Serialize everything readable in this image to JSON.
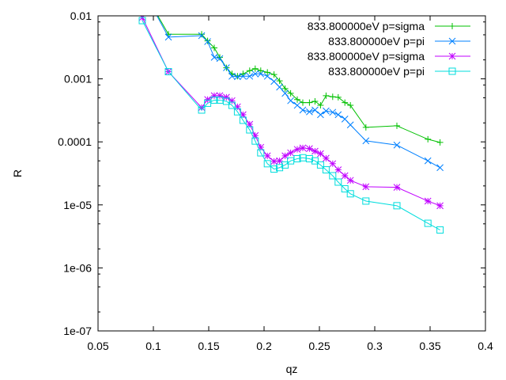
{
  "chart_data": {
    "type": "line",
    "title": "",
    "xlabel": "qz",
    "ylabel": "R",
    "xlim": [
      0.05,
      0.4
    ],
    "ylim": [
      1e-07,
      0.01
    ],
    "yscale": "log",
    "grid": false,
    "legend_position": "top-right",
    "x_ticks": [
      "0.05",
      "0.1",
      "0.15",
      "0.2",
      "0.25",
      "0.3",
      "0.35",
      "0.4"
    ],
    "y_ticks": [
      "1e-07",
      "1e-06",
      "1e-05",
      "0.0001",
      "0.001",
      "0.01"
    ],
    "x": [
      0.09,
      0.1136,
      0.1436,
      0.149,
      0.155,
      0.16,
      0.166,
      0.171,
      0.176,
      0.181,
      0.187,
      0.192,
      0.197,
      0.203,
      0.209,
      0.214,
      0.219,
      0.224,
      0.23,
      0.235,
      0.241,
      0.246,
      0.251,
      0.256,
      0.262,
      0.267,
      0.273,
      0.278,
      0.292,
      0.32,
      0.348,
      0.359
    ],
    "series": [
      {
        "name": "833.800000eV p=sigma",
        "color": "#00c000",
        "marker": "plus",
        "values": [
          0.027,
          0.0051,
          0.0051,
          0.004,
          0.0031,
          0.0022,
          0.0015,
          0.0012,
          0.0011,
          0.0012,
          0.00135,
          0.00145,
          0.00135,
          0.00127,
          0.00117,
          0.00093,
          0.0007,
          0.00059,
          0.00047,
          0.00042,
          0.00042,
          0.00044,
          0.00038,
          0.00054,
          0.00052,
          0.00051,
          0.00042,
          0.00038,
          0.00017,
          0.00018,
          0.00011,
          9.8e-05
        ]
      },
      {
        "name": "833.800000eV p=pi",
        "color": "#0080ff",
        "marker": "cross",
        "values": [
          0.027,
          0.0046,
          0.00485,
          0.0039,
          0.0022,
          0.0021,
          0.0015,
          0.0011,
          0.00108,
          0.0011,
          0.0011,
          0.0012,
          0.0012,
          0.0011,
          0.00091,
          0.00074,
          0.00059,
          0.00045,
          0.00038,
          0.00032,
          0.0003,
          0.00032,
          0.00027,
          0.00031,
          0.000295,
          0.00027,
          0.00023,
          0.000186,
          0.000104,
          8.9e-05,
          5e-05,
          3.9e-05
        ]
      },
      {
        "name": "833.800000eV p=sigma",
        "color": "#c000ff",
        "marker": "star",
        "values": [
          0.0094,
          0.0013,
          0.00035,
          0.00047,
          0.00054,
          0.00054,
          0.00051,
          0.00045,
          0.00036,
          0.00027,
          0.00019,
          0.000126,
          8.2e-05,
          6e-05,
          4.9e-05,
          5e-05,
          6e-05,
          6.7e-05,
          7.6e-05,
          8e-05,
          7.8e-05,
          7.1e-05,
          6.5e-05,
          5.5e-05,
          4.5e-05,
          3.6e-05,
          2.9e-05,
          2.45e-05,
          1.94e-05,
          1.9e-05,
          1.15e-05,
          9.7e-06
        ]
      },
      {
        "name": "833.800000eV p=pi",
        "color": "#00dddd",
        "marker": "square",
        "values": [
          0.0084,
          0.0013,
          0.00032,
          0.00041,
          0.00046,
          0.00046,
          0.00044,
          0.00038,
          0.0003,
          0.00022,
          0.000155,
          0.000103,
          6.7e-05,
          4.5e-05,
          3.7e-05,
          3.9e-05,
          4.3e-05,
          5e-05,
          5.4e-05,
          5.6e-05,
          5.4e-05,
          5e-05,
          4.3e-05,
          3.6e-05,
          2.9e-05,
          2.3e-05,
          1.8e-05,
          1.5e-05,
          1.15e-05,
          9.7e-06,
          5.1e-06,
          4e-06
        ]
      }
    ]
  }
}
